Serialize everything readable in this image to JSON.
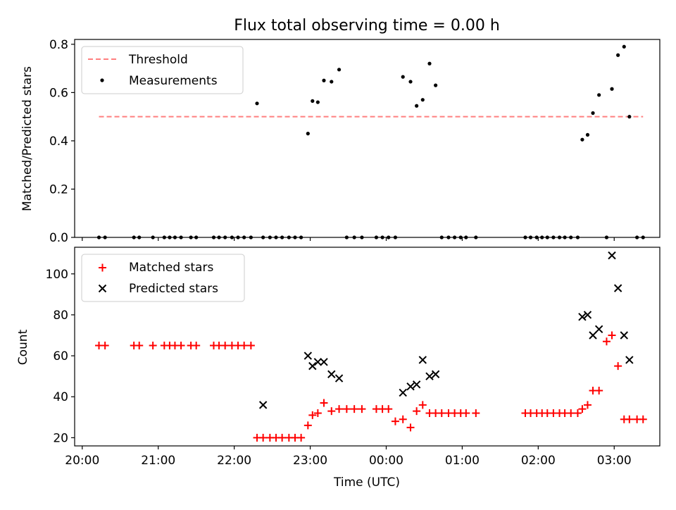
{
  "chart_data": [
    {
      "type": "scatter",
      "title": "Flux total observing time = 0.00 h",
      "xlabel": "",
      "ylabel": "Matched/Predicted stars",
      "xlim": [
        -0.1,
        7.6
      ],
      "ylim": [
        0,
        0.82
      ],
      "yticks": [
        "0.0",
        "0.2",
        "0.4",
        "0.6",
        "0.8"
      ],
      "threshold": {
        "name": "Threshold",
        "value": 0.5,
        "x": [
          0.22,
          7.38
        ],
        "color": "#ff7f7f"
      },
      "legend": {
        "placement": "top-left",
        "entries": [
          "Threshold",
          "Measurements"
        ]
      },
      "series": [
        {
          "name": "Measurements",
          "color": "#000000",
          "x": [
            0.22,
            0.3,
            0.68,
            0.75,
            0.93,
            1.08,
            1.15,
            1.22,
            1.3,
            1.43,
            1.5,
            1.73,
            1.8,
            1.88,
            1.97,
            2.05,
            2.13,
            2.22,
            2.3,
            2.38,
            2.47,
            2.55,
            2.63,
            2.72,
            2.8,
            2.88,
            2.97,
            3.03,
            3.1,
            3.18,
            3.28,
            3.38,
            3.48,
            3.58,
            3.68,
            3.87,
            3.95,
            4.03,
            4.12,
            4.22,
            4.32,
            4.4,
            4.48,
            4.57,
            4.65,
            4.73,
            4.82,
            4.9,
            4.98,
            5.05,
            5.18,
            5.83,
            5.9,
            5.98,
            6.05,
            6.12,
            6.2,
            6.28,
            6.35,
            6.43,
            6.52,
            6.58,
            6.65,
            6.72,
            6.8,
            6.9,
            6.97,
            7.05,
            7.13,
            7.2,
            7.3,
            7.38
          ],
          "y": [
            0,
            0,
            0,
            0,
            0,
            0,
            0,
            0,
            0,
            0,
            0,
            0,
            0,
            0,
            0,
            0,
            0,
            0,
            0.555,
            0,
            0,
            0,
            0,
            0,
            0,
            0,
            0.43,
            0.565,
            0.56,
            0.65,
            0.645,
            0.695,
            0,
            0,
            0,
            0,
            0,
            0,
            0,
            0.665,
            0.645,
            0.545,
            0.57,
            0.72,
            0.63,
            0,
            0,
            0,
            0,
            0,
            0,
            0,
            0,
            0,
            0,
            0,
            0,
            0,
            0,
            0,
            0,
            0.405,
            0.425,
            0.515,
            0.59,
            0,
            0.615,
            0.755,
            0.79,
            0.5,
            0,
            0
          ]
        }
      ]
    },
    {
      "type": "scatter",
      "title": "",
      "xlabel": "Time (UTC)",
      "ylabel": "Count",
      "xlim": [
        -0.1,
        7.6
      ],
      "ylim": [
        16,
        113
      ],
      "yticks": [
        "20",
        "40",
        "60",
        "80",
        "100"
      ],
      "xticks": [
        "20:00",
        "21:00",
        "22:00",
        "23:00",
        "00:00",
        "01:00",
        "02:00",
        "03:00"
      ],
      "legend": {
        "placement": "top-left",
        "entries": [
          "Matched stars",
          "Predicted stars"
        ]
      },
      "series": [
        {
          "name": "Matched stars",
          "marker": "plus",
          "color": "#ff0000",
          "x": [
            0.22,
            0.3,
            0.68,
            0.75,
            0.93,
            1.08,
            1.15,
            1.22,
            1.3,
            1.43,
            1.5,
            1.73,
            1.8,
            1.88,
            1.97,
            2.05,
            2.13,
            2.22,
            2.3,
            2.38,
            2.47,
            2.55,
            2.63,
            2.72,
            2.8,
            2.88,
            2.97,
            3.03,
            3.1,
            3.18,
            3.28,
            3.38,
            3.48,
            3.58,
            3.68,
            3.87,
            3.95,
            4.03,
            4.12,
            4.22,
            4.32,
            4.4,
            4.48,
            4.57,
            4.65,
            4.73,
            4.82,
            4.9,
            4.98,
            5.05,
            5.18,
            5.83,
            5.9,
            5.98,
            6.05,
            6.12,
            6.2,
            6.28,
            6.35,
            6.43,
            6.52,
            6.58,
            6.65,
            6.72,
            6.8,
            6.9,
            6.97,
            7.05,
            7.13,
            7.2,
            7.3,
            7.38
          ],
          "y": [
            65,
            65,
            65,
            65,
            65,
            65,
            65,
            65,
            65,
            65,
            65,
            65,
            65,
            65,
            65,
            65,
            65,
            65,
            20,
            20,
            20,
            20,
            20,
            20,
            20,
            20,
            26,
            31,
            32,
            37,
            33,
            34,
            34,
            34,
            34,
            34,
            34,
            34,
            28,
            29,
            25,
            33,
            36,
            32,
            32,
            32,
            32,
            32,
            32,
            32,
            32,
            32,
            32,
            32,
            32,
            32,
            32,
            32,
            32,
            32,
            32,
            34,
            36,
            43,
            43,
            67,
            70,
            55,
            29,
            29,
            29,
            29
          ]
        },
        {
          "name": "Predicted stars",
          "marker": "x",
          "color": "#000000",
          "x": [
            2.38,
            2.97,
            3.03,
            3.1,
            3.18,
            3.28,
            3.38,
            4.22,
            4.32,
            4.4,
            4.48,
            4.57,
            4.65,
            6.58,
            6.65,
            6.72,
            6.8,
            6.97,
            7.05,
            7.13,
            7.2
          ],
          "y": [
            36,
            60,
            55,
            57,
            57,
            51,
            49,
            42,
            45,
            46,
            58,
            50,
            51,
            79,
            80,
            70,
            73,
            109,
            93,
            70,
            58
          ]
        }
      ]
    }
  ]
}
